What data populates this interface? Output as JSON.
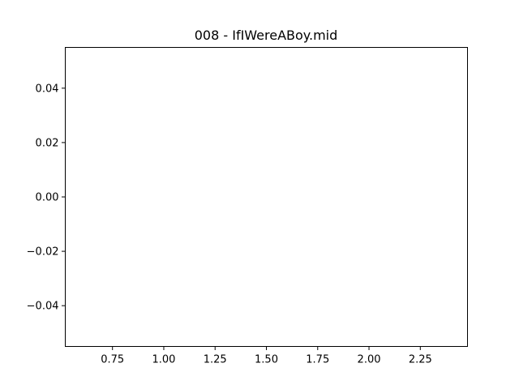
{
  "chart_data": {
    "type": "line",
    "title": "008 - IfIWereABoy.mid",
    "xlabel": "",
    "ylabel": "",
    "xlim": [
      0.52,
      2.48
    ],
    "ylim": [
      -0.055,
      0.055
    ],
    "xticks": [
      0.75,
      1.0,
      1.25,
      1.5,
      1.75,
      2.0,
      2.25
    ],
    "xtick_labels": [
      "0.75",
      "1.00",
      "1.25",
      "1.50",
      "1.75",
      "2.00",
      "2.25"
    ],
    "yticks": [
      0.04,
      0.02,
      0.0,
      -0.02,
      -0.04
    ],
    "ytick_labels": [
      "0.04",
      "0.02",
      "0.00",
      "−0.02",
      "−0.04"
    ],
    "series": [],
    "grid": false,
    "legend": false
  },
  "colors": {
    "axes_edge": "#000000",
    "background": "#ffffff",
    "text": "#000000"
  }
}
